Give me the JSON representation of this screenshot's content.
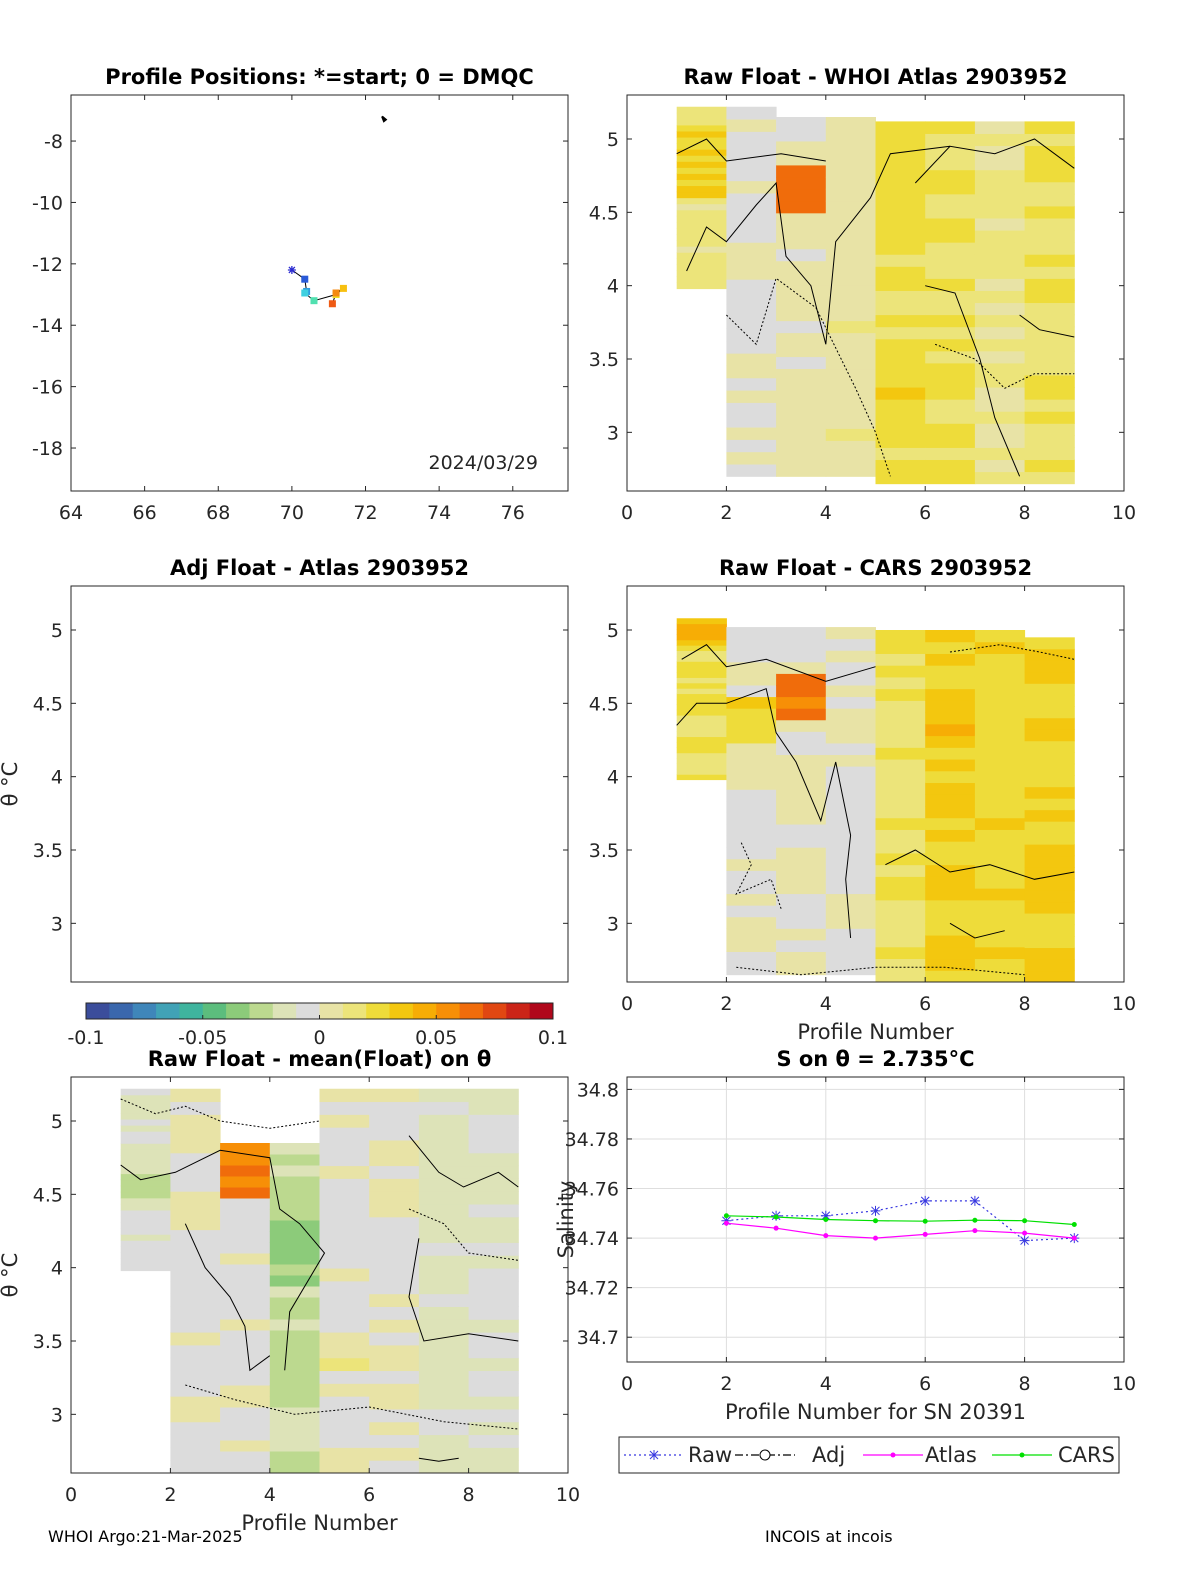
{
  "footer": {
    "left": "WHOI Argo:21-Mar-2025",
    "right": "INCOIS at incois"
  },
  "colorbar": {
    "ticks": [
      "-0.1",
      "-0.05",
      "0",
      "0.05",
      "0.1"
    ],
    "colors": [
      "#3b4d9b",
      "#3a67ad",
      "#3f86ba",
      "#41a2b6",
      "#3fb49e",
      "#5cbd7d",
      "#8ccb7a",
      "#bcd98f",
      "#dde3b8",
      "#dcdcdc",
      "#e8e3a6",
      "#ece47a",
      "#eedc3a",
      "#f3c70f",
      "#f7ad05",
      "#f78f07",
      "#f06c0b",
      "#e14712",
      "#cb2418",
      "#b0071b"
    ]
  },
  "chart_data": [
    {
      "id": "positions",
      "type": "scatter",
      "title": "Profile Positions: *=start; 0 = DMQC",
      "xlim": [
        64,
        77.5
      ],
      "ylim": [
        -19.4,
        -6.5
      ],
      "xticks": [
        "64",
        "66",
        "68",
        "70",
        "72",
        "74",
        "76"
      ],
      "yticks": [
        "-8",
        "-10",
        "-12",
        "-14",
        "-16",
        "-18"
      ],
      "annotation": "2024/03/29",
      "points": [
        {
          "x": 70.0,
          "y": -12.2,
          "color": "#2a2ad0",
          "marker": "star"
        },
        {
          "x": 70.35,
          "y": -12.5,
          "color": "#2a5ad8",
          "marker": "square"
        },
        {
          "x": 70.4,
          "y": -12.9,
          "color": "#2f9be0",
          "marker": "square"
        },
        {
          "x": 70.35,
          "y": -12.95,
          "color": "#3fd0e0",
          "marker": "square"
        },
        {
          "x": 70.6,
          "y": -13.2,
          "color": "#50e0b0",
          "marker": "square"
        },
        {
          "x": 71.2,
          "y": -13.0,
          "color": "#f0e020",
          "marker": "square"
        },
        {
          "x": 71.4,
          "y": -12.8,
          "color": "#f7c010",
          "marker": "square"
        },
        {
          "x": 71.2,
          "y": -12.95,
          "color": "#f58a10",
          "marker": "square"
        },
        {
          "x": 71.1,
          "y": -13.3,
          "color": "#ef5a14",
          "marker": "square"
        }
      ],
      "coast": [
        [
          72.45,
          -7.2
        ],
        [
          72.55,
          -7.3
        ],
        [
          72.5,
          -7.35
        ]
      ]
    },
    {
      "id": "whoi",
      "type": "heatmap",
      "title": "Raw Float - WHOI Atlas  2903952",
      "xlim": [
        0,
        10
      ],
      "ylim": [
        2.6,
        5.3
      ],
      "xticks": [
        "0",
        "2",
        "4",
        "6",
        "8",
        "10"
      ],
      "yticks": [
        "5",
        "4.5",
        "4",
        "3.5",
        "3"
      ],
      "xlabel": "",
      "ylabel": ""
    },
    {
      "id": "adj",
      "type": "heatmap",
      "title": "Adj Float - Atlas  2903952",
      "xlim": [
        0,
        10
      ],
      "ylim": [
        2.6,
        5.3
      ],
      "xticks": [],
      "yticks": [
        "5",
        "4.5",
        "4",
        "3.5",
        "3"
      ],
      "xlabel": "",
      "ylabel": "θ °C"
    },
    {
      "id": "cars",
      "type": "heatmap",
      "title": "Raw Float - CARS  2903952",
      "xlim": [
        0,
        10
      ],
      "ylim": [
        2.6,
        5.3
      ],
      "xticks": [
        "0",
        "2",
        "4",
        "6",
        "8",
        "10"
      ],
      "yticks": [
        "5",
        "4.5",
        "4",
        "3.5",
        "3"
      ],
      "xlabel": "Profile Number",
      "ylabel": ""
    },
    {
      "id": "mean",
      "type": "heatmap",
      "title": "Raw Float - mean(Float) on θ",
      "xlim": [
        0,
        10
      ],
      "ylim": [
        2.6,
        5.3
      ],
      "xticks": [
        "0",
        "2",
        "4",
        "6",
        "8",
        "10"
      ],
      "yticks": [
        "5",
        "4.5",
        "4",
        "3.5",
        "3"
      ],
      "xlabel": "Profile Number",
      "ylabel": "θ °C"
    },
    {
      "id": "salinity",
      "type": "line",
      "title": "S on θ = 2.735°C",
      "xlim": [
        0,
        10
      ],
      "ylim": [
        34.69,
        34.805
      ],
      "xticks": [
        "0",
        "2",
        "4",
        "6",
        "8",
        "10"
      ],
      "yticks": [
        "34.8",
        "34.78",
        "34.76",
        "34.74",
        "34.72",
        "34.7"
      ],
      "xlabel": "Profile Number for SN 20391",
      "ylabel": "Salinity",
      "grid": true,
      "legend_position": "bottom",
      "series": [
        {
          "name": "Raw",
          "color": "#3838e0",
          "style": "dotted",
          "marker": "star",
          "x": [
            2,
            3,
            4,
            5,
            6,
            7,
            8,
            9
          ],
          "y": [
            34.747,
            34.749,
            34.749,
            34.751,
            34.755,
            34.755,
            34.739,
            34.74
          ]
        },
        {
          "name": "Adj",
          "color": "#000000",
          "style": "dashdot",
          "marker": "circle",
          "x": [],
          "y": []
        },
        {
          "name": "Atlas",
          "color": "#ff00ff",
          "style": "solid",
          "marker": "dot",
          "x": [
            2,
            3,
            4,
            5,
            6,
            7,
            8,
            9
          ],
          "y": [
            34.746,
            34.744,
            34.741,
            34.74,
            34.7415,
            34.743,
            34.742,
            34.74
          ]
        },
        {
          "name": "CARS",
          "color": "#00e000",
          "style": "solid",
          "marker": "dot",
          "x": [
            2,
            3,
            4,
            5,
            6,
            7,
            8,
            9
          ],
          "y": [
            34.749,
            34.7485,
            34.7475,
            34.747,
            34.7468,
            34.7472,
            34.747,
            34.7455
          ]
        }
      ]
    }
  ]
}
